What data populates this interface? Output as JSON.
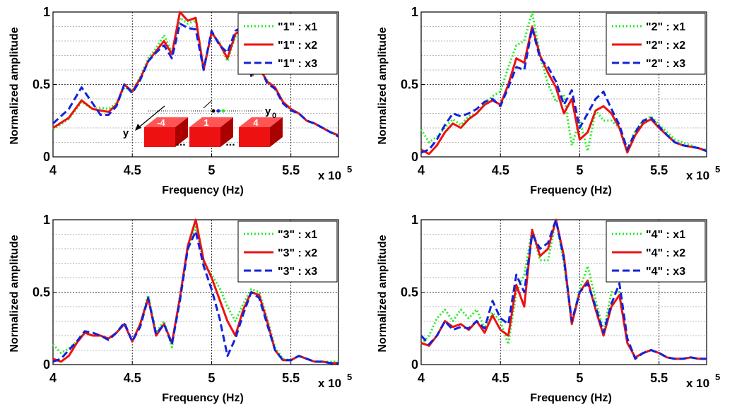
{
  "colors": {
    "x1": "#22ee22",
    "x2": "#ee1111",
    "x3": "#1122dd",
    "grid": "#000000",
    "block": "#ee1111"
  },
  "common": {
    "xlabel": "Frequency (Hz)",
    "ylabel": "Normalized amplitude",
    "xtick_labels": [
      "4",
      "4.5",
      "5",
      "5.5"
    ],
    "ytick_labels": [
      "0",
      "0.5",
      "1"
    ],
    "x_multiplier_base": "x 10",
    "x_multiplier_exp": "5"
  },
  "inset": {
    "blocks": [
      "-4",
      "1",
      "4"
    ],
    "dots": "...",
    "axis_y": "y",
    "y0_base": "y",
    "y0_sub": "0"
  },
  "chart_data": [
    {
      "type": "line",
      "xlabel": "Frequency (Hz)",
      "ylabel": "Normalized amplitude",
      "xlim": [
        400000,
        580000
      ],
      "ylim": [
        0,
        1
      ],
      "grid": true,
      "legend": "top-right",
      "series": [
        {
          "name": "\"1\" : x1",
          "style": "dotted",
          "x": [
            400000,
            410000,
            418000,
            425000,
            430000,
            435000,
            440000,
            445000,
            450000,
            455000,
            460000,
            465000,
            470000,
            475000,
            480000,
            485000,
            490000,
            495000,
            500000,
            505000,
            510000,
            515000,
            520000,
            525000,
            530000,
            535000,
            540000,
            545000,
            550000,
            555000,
            560000,
            565000,
            570000,
            575000,
            580000
          ],
          "y": [
            0.19,
            0.26,
            0.38,
            0.33,
            0.34,
            0.33,
            0.37,
            0.48,
            0.46,
            0.55,
            0.68,
            0.75,
            0.84,
            0.72,
            0.96,
            0.92,
            0.94,
            0.62,
            0.85,
            0.79,
            0.66,
            0.83,
            0.84,
            0.55,
            0.6,
            0.53,
            0.47,
            0.38,
            0.32,
            0.3,
            0.25,
            0.23,
            0.2,
            0.17,
            0.14
          ]
        },
        {
          "name": "\"1\" : x2",
          "style": "solid",
          "x": [
            400000,
            410000,
            418000,
            425000,
            430000,
            435000,
            440000,
            445000,
            450000,
            455000,
            460000,
            465000,
            470000,
            475000,
            480000,
            485000,
            490000,
            495000,
            500000,
            505000,
            510000,
            515000,
            520000,
            525000,
            530000,
            535000,
            540000,
            545000,
            550000,
            555000,
            560000,
            565000,
            570000,
            575000,
            580000
          ],
          "y": [
            0.2,
            0.27,
            0.39,
            0.33,
            0.32,
            0.31,
            0.36,
            0.5,
            0.45,
            0.54,
            0.66,
            0.73,
            0.8,
            0.71,
            1.0,
            0.94,
            0.96,
            0.6,
            0.86,
            0.78,
            0.68,
            0.85,
            0.88,
            0.56,
            0.62,
            0.52,
            0.48,
            0.38,
            0.33,
            0.3,
            0.25,
            0.23,
            0.2,
            0.17,
            0.15
          ]
        },
        {
          "name": "\"1\" : x3",
          "style": "dashed",
          "x": [
            400000,
            410000,
            418000,
            425000,
            430000,
            435000,
            440000,
            445000,
            450000,
            455000,
            460000,
            465000,
            470000,
            475000,
            480000,
            485000,
            490000,
            495000,
            500000,
            505000,
            510000,
            515000,
            520000,
            525000,
            530000,
            535000,
            540000,
            545000,
            550000,
            555000,
            560000,
            565000,
            570000,
            575000,
            580000
          ],
          "y": [
            0.23,
            0.33,
            0.48,
            0.37,
            0.29,
            0.29,
            0.35,
            0.5,
            0.44,
            0.53,
            0.66,
            0.72,
            0.77,
            0.68,
            0.92,
            0.89,
            0.88,
            0.6,
            0.87,
            0.77,
            0.72,
            0.87,
            0.9,
            0.56,
            0.63,
            0.51,
            0.47,
            0.37,
            0.32,
            0.3,
            0.25,
            0.23,
            0.2,
            0.17,
            0.14
          ]
        }
      ]
    },
    {
      "type": "line",
      "xlabel": "Frequency (Hz)",
      "ylabel": "Normalized amplitude",
      "xlim": [
        400000,
        580000
      ],
      "ylim": [
        0,
        1
      ],
      "grid": true,
      "legend": "top-right",
      "series": [
        {
          "name": "\"2\" : x1",
          "style": "dotted",
          "x": [
            400000,
            405000,
            410000,
            415000,
            420000,
            425000,
            430000,
            435000,
            440000,
            445000,
            450000,
            455000,
            460000,
            465000,
            470000,
            475000,
            480000,
            485000,
            490000,
            495000,
            500000,
            505000,
            510000,
            515000,
            520000,
            525000,
            530000,
            535000,
            540000,
            545000,
            550000,
            555000,
            560000,
            565000,
            570000,
            575000,
            580000
          ],
          "y": [
            0.19,
            0.1,
            0.14,
            0.2,
            0.26,
            0.22,
            0.28,
            0.3,
            0.37,
            0.42,
            0.45,
            0.62,
            0.77,
            0.8,
            1.0,
            0.7,
            0.5,
            0.38,
            0.43,
            0.08,
            0.25,
            0.04,
            0.32,
            0.25,
            0.25,
            0.2,
            0.05,
            0.18,
            0.25,
            0.28,
            0.22,
            0.17,
            0.12,
            0.1,
            0.08,
            0.06,
            0.05
          ]
        },
        {
          "name": "\"2\" : x2",
          "style": "solid",
          "x": [
            400000,
            405000,
            410000,
            415000,
            420000,
            425000,
            430000,
            435000,
            440000,
            445000,
            450000,
            455000,
            460000,
            465000,
            470000,
            475000,
            480000,
            485000,
            490000,
            495000,
            500000,
            505000,
            510000,
            515000,
            520000,
            525000,
            530000,
            535000,
            540000,
            545000,
            550000,
            555000,
            560000,
            565000,
            570000,
            575000,
            580000
          ],
          "y": [
            0.05,
            0.02,
            0.08,
            0.17,
            0.23,
            0.2,
            0.26,
            0.3,
            0.36,
            0.39,
            0.36,
            0.5,
            0.68,
            0.65,
            0.9,
            0.7,
            0.58,
            0.48,
            0.3,
            0.4,
            0.12,
            0.17,
            0.32,
            0.35,
            0.3,
            0.2,
            0.03,
            0.15,
            0.23,
            0.26,
            0.2,
            0.15,
            0.1,
            0.08,
            0.07,
            0.06,
            0.04
          ]
        },
        {
          "name": "\"2\" : x3",
          "style": "dashed",
          "x": [
            400000,
            405000,
            410000,
            415000,
            420000,
            425000,
            430000,
            435000,
            440000,
            445000,
            450000,
            455000,
            460000,
            465000,
            470000,
            475000,
            480000,
            485000,
            490000,
            495000,
            500000,
            505000,
            510000,
            515000,
            520000,
            525000,
            530000,
            535000,
            540000,
            545000,
            550000,
            555000,
            560000,
            565000,
            570000,
            575000,
            580000
          ],
          "y": [
            0.03,
            0.05,
            0.12,
            0.22,
            0.3,
            0.28,
            0.3,
            0.33,
            0.38,
            0.4,
            0.35,
            0.48,
            0.62,
            0.6,
            0.89,
            0.68,
            0.62,
            0.52,
            0.36,
            0.46,
            0.2,
            0.3,
            0.4,
            0.45,
            0.33,
            0.22,
            0.05,
            0.17,
            0.25,
            0.27,
            0.21,
            0.15,
            0.1,
            0.08,
            0.07,
            0.06,
            0.04
          ]
        }
      ]
    },
    {
      "type": "line",
      "xlabel": "Frequency (Hz)",
      "ylabel": "Normalized amplitude",
      "xlim": [
        400000,
        580000
      ],
      "ylim": [
        0,
        1
      ],
      "grid": true,
      "legend": "top-right",
      "series": [
        {
          "name": "\"3\" : x1",
          "style": "dotted",
          "x": [
            400000,
            405000,
            410000,
            415000,
            420000,
            425000,
            430000,
            435000,
            440000,
            445000,
            450000,
            455000,
            460000,
            465000,
            470000,
            475000,
            480000,
            485000,
            490000,
            495000,
            500000,
            505000,
            510000,
            515000,
            520000,
            525000,
            530000,
            535000,
            540000,
            545000,
            550000,
            555000,
            560000,
            565000,
            570000,
            575000,
            580000
          ],
          "y": [
            0.14,
            0.08,
            0.11,
            0.16,
            0.22,
            0.2,
            0.2,
            0.18,
            0.22,
            0.28,
            0.16,
            0.28,
            0.48,
            0.22,
            0.3,
            0.12,
            0.48,
            0.8,
            0.95,
            0.7,
            0.62,
            0.53,
            0.4,
            0.3,
            0.42,
            0.52,
            0.5,
            0.32,
            0.12,
            0.04,
            0.03,
            0.06,
            0.04,
            0.02,
            0.02,
            0.02,
            0.02
          ]
        },
        {
          "name": "\"3\" : x2",
          "style": "solid",
          "x": [
            400000,
            405000,
            410000,
            415000,
            420000,
            425000,
            430000,
            435000,
            440000,
            445000,
            450000,
            455000,
            460000,
            465000,
            470000,
            475000,
            480000,
            485000,
            490000,
            495000,
            500000,
            505000,
            510000,
            515000,
            520000,
            525000,
            530000,
            535000,
            540000,
            545000,
            550000,
            555000,
            560000,
            565000,
            570000,
            575000,
            580000
          ],
          "y": [
            0.04,
            0.02,
            0.06,
            0.15,
            0.22,
            0.2,
            0.2,
            0.18,
            0.22,
            0.28,
            0.16,
            0.28,
            0.46,
            0.2,
            0.28,
            0.15,
            0.46,
            0.82,
            1.0,
            0.72,
            0.6,
            0.45,
            0.3,
            0.2,
            0.38,
            0.5,
            0.48,
            0.3,
            0.1,
            0.03,
            0.03,
            0.06,
            0.04,
            0.02,
            0.02,
            0.01,
            0.01
          ]
        },
        {
          "name": "\"3\" : x3",
          "style": "dashed",
          "x": [
            400000,
            405000,
            410000,
            415000,
            420000,
            425000,
            430000,
            435000,
            440000,
            445000,
            450000,
            455000,
            460000,
            465000,
            470000,
            475000,
            480000,
            485000,
            490000,
            495000,
            500000,
            505000,
            510000,
            515000,
            520000,
            525000,
            530000,
            535000,
            540000,
            545000,
            550000,
            555000,
            560000,
            565000,
            570000,
            575000,
            580000
          ],
          "y": [
            0.02,
            0.04,
            0.1,
            0.16,
            0.23,
            0.22,
            0.2,
            0.17,
            0.22,
            0.29,
            0.16,
            0.26,
            0.46,
            0.21,
            0.28,
            0.14,
            0.44,
            0.8,
            0.92,
            0.68,
            0.52,
            0.32,
            0.06,
            0.18,
            0.35,
            0.5,
            0.46,
            0.28,
            0.1,
            0.03,
            0.03,
            0.06,
            0.04,
            0.02,
            0.02,
            0.01,
            0.01
          ]
        }
      ]
    },
    {
      "type": "line",
      "xlabel": "Frequency (Hz)",
      "ylabel": "Normalized amplitude",
      "xlim": [
        400000,
        580000
      ],
      "ylim": [
        0,
        1
      ],
      "grid": true,
      "legend": "top-right",
      "series": [
        {
          "name": "\"4\" : x1",
          "style": "dotted",
          "x": [
            400000,
            405000,
            410000,
            415000,
            420000,
            425000,
            430000,
            435000,
            440000,
            445000,
            450000,
            455000,
            460000,
            465000,
            470000,
            475000,
            480000,
            485000,
            490000,
            495000,
            500000,
            505000,
            510000,
            515000,
            520000,
            525000,
            530000,
            535000,
            540000,
            545000,
            550000,
            555000,
            560000,
            565000,
            570000,
            575000,
            580000
          ],
          "y": [
            0.14,
            0.2,
            0.32,
            0.38,
            0.3,
            0.38,
            0.32,
            0.38,
            0.25,
            0.36,
            0.3,
            0.14,
            0.5,
            0.62,
            0.93,
            0.72,
            0.72,
            1.0,
            0.7,
            0.28,
            0.52,
            0.68,
            0.45,
            0.23,
            0.5,
            0.5,
            0.15,
            0.05,
            0.08,
            0.1,
            0.08,
            0.05,
            0.04,
            0.04,
            0.05,
            0.04,
            0.04
          ]
        },
        {
          "name": "\"4\" : x2",
          "style": "solid",
          "x": [
            400000,
            405000,
            410000,
            415000,
            420000,
            425000,
            430000,
            435000,
            440000,
            445000,
            450000,
            455000,
            460000,
            465000,
            470000,
            475000,
            480000,
            485000,
            490000,
            495000,
            500000,
            505000,
            510000,
            515000,
            520000,
            525000,
            530000,
            535000,
            540000,
            545000,
            550000,
            555000,
            560000,
            565000,
            570000,
            575000,
            580000
          ],
          "y": [
            0.15,
            0.13,
            0.2,
            0.3,
            0.26,
            0.28,
            0.24,
            0.3,
            0.22,
            0.34,
            0.24,
            0.2,
            0.55,
            0.4,
            0.93,
            0.75,
            0.8,
            1.0,
            0.75,
            0.28,
            0.5,
            0.58,
            0.38,
            0.2,
            0.4,
            0.48,
            0.15,
            0.05,
            0.08,
            0.1,
            0.08,
            0.05,
            0.04,
            0.04,
            0.05,
            0.04,
            0.04
          ]
        },
        {
          "name": "\"4\" : x3",
          "style": "dashed",
          "x": [
            400000,
            405000,
            410000,
            415000,
            420000,
            425000,
            430000,
            435000,
            440000,
            445000,
            450000,
            455000,
            460000,
            465000,
            470000,
            475000,
            480000,
            485000,
            490000,
            495000,
            500000,
            505000,
            510000,
            515000,
            520000,
            525000,
            530000,
            535000,
            540000,
            545000,
            550000,
            555000,
            560000,
            565000,
            570000,
            575000,
            580000
          ],
          "y": [
            0.2,
            0.14,
            0.2,
            0.3,
            0.24,
            0.26,
            0.25,
            0.3,
            0.25,
            0.44,
            0.32,
            0.28,
            0.62,
            0.5,
            0.9,
            0.8,
            0.84,
            1.0,
            0.73,
            0.3,
            0.5,
            0.56,
            0.4,
            0.22,
            0.42,
            0.56,
            0.18,
            0.04,
            0.08,
            0.1,
            0.08,
            0.05,
            0.04,
            0.04,
            0.05,
            0.04,
            0.04
          ]
        }
      ]
    }
  ]
}
